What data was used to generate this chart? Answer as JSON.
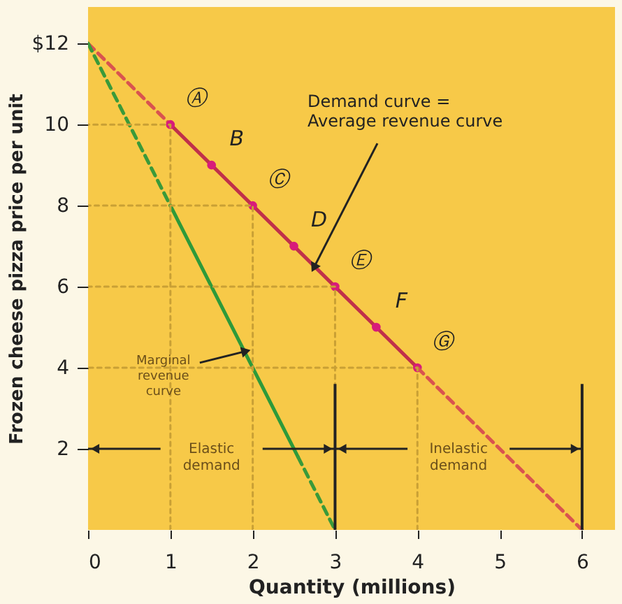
{
  "chart_data": {
    "type": "line",
    "xlabel": "Quantity (millions)",
    "ylabel": "Frozen cheese pizza price per unit",
    "xlim": [
      0,
      6.4
    ],
    "ylim": [
      0,
      12.9
    ],
    "xticks": [
      0,
      1,
      2,
      3,
      4,
      5,
      6
    ],
    "yticks": [
      {
        "value": 2,
        "label": "2"
      },
      {
        "value": 4,
        "label": "4"
      },
      {
        "value": 6,
        "label": "6"
      },
      {
        "value": 8,
        "label": "8"
      },
      {
        "value": 10,
        "label": "10"
      },
      {
        "value": 12,
        "label": "$12"
      }
    ],
    "series": [
      {
        "color": "#d9534f",
        "line_style": "dashed",
        "x": [
          0,
          1
        ],
        "values": [
          12,
          10
        ]
      },
      {
        "color": "#c0304a",
        "line_style": "solid",
        "marker": "circle",
        "x": [
          1,
          1.5,
          2,
          2.5,
          3,
          3.5,
          4
        ],
        "values": [
          10,
          9,
          8,
          7,
          6,
          5,
          4
        ]
      },
      {
        "color": "#d9534f",
        "line_style": "dashed",
        "x": [
          4,
          6
        ],
        "values": [
          4,
          0
        ]
      },
      {
        "color": "#3a9a3a",
        "line_style": "dashed",
        "x": [
          0,
          1
        ],
        "values": [
          12,
          8
        ]
      },
      {
        "color": "#2e9a3a",
        "line_style": "solid",
        "x": [
          1,
          2.55
        ],
        "values": [
          8,
          1.8
        ]
      },
      {
        "color": "#3a9a3a",
        "line_style": "dashed",
        "x": [
          2.55,
          3
        ],
        "values": [
          1.8,
          0
        ]
      },
      {
        "color": "#c9a035",
        "line_style": "dotted",
        "x": [
          1,
          1,
          0
        ],
        "values": [
          0,
          10,
          10
        ]
      },
      {
        "color": "#c9a035",
        "line_style": "dotted",
        "x": [
          2,
          2,
          0
        ],
        "values": [
          0,
          8,
          8
        ]
      },
      {
        "color": "#c9a035",
        "line_style": "dotted",
        "x": [
          3,
          3,
          0
        ],
        "values": [
          0,
          6,
          6
        ]
      },
      {
        "color": "#c9a035",
        "line_style": "dotted",
        "x": [
          4,
          4,
          0
        ],
        "values": [
          0,
          4,
          4
        ]
      }
    ],
    "annotations": [
      {
        "text": "Ⓐ",
        "x": 1,
        "y": 10
      },
      {
        "text": "B",
        "x": 1.5,
        "y": 9
      },
      {
        "text": "Ⓒ",
        "x": 2,
        "y": 8
      },
      {
        "text": "D",
        "x": 2.5,
        "y": 7
      },
      {
        "text": "Ⓔ",
        "x": 3,
        "y": 6
      },
      {
        "text": "F",
        "x": 3.5,
        "y": 5
      },
      {
        "text": "Ⓖ",
        "x": 4,
        "y": 4
      },
      {
        "text": "Demand curve =\nAverage revenue curve",
        "x": 2.75,
        "y": 6.5
      },
      {
        "text": "Marginal\nrevenue\ncurve",
        "x": 1.9,
        "y": 4.4
      },
      "Elastic\ndemand",
      "Inelastic\ndemand"
    ]
  }
}
